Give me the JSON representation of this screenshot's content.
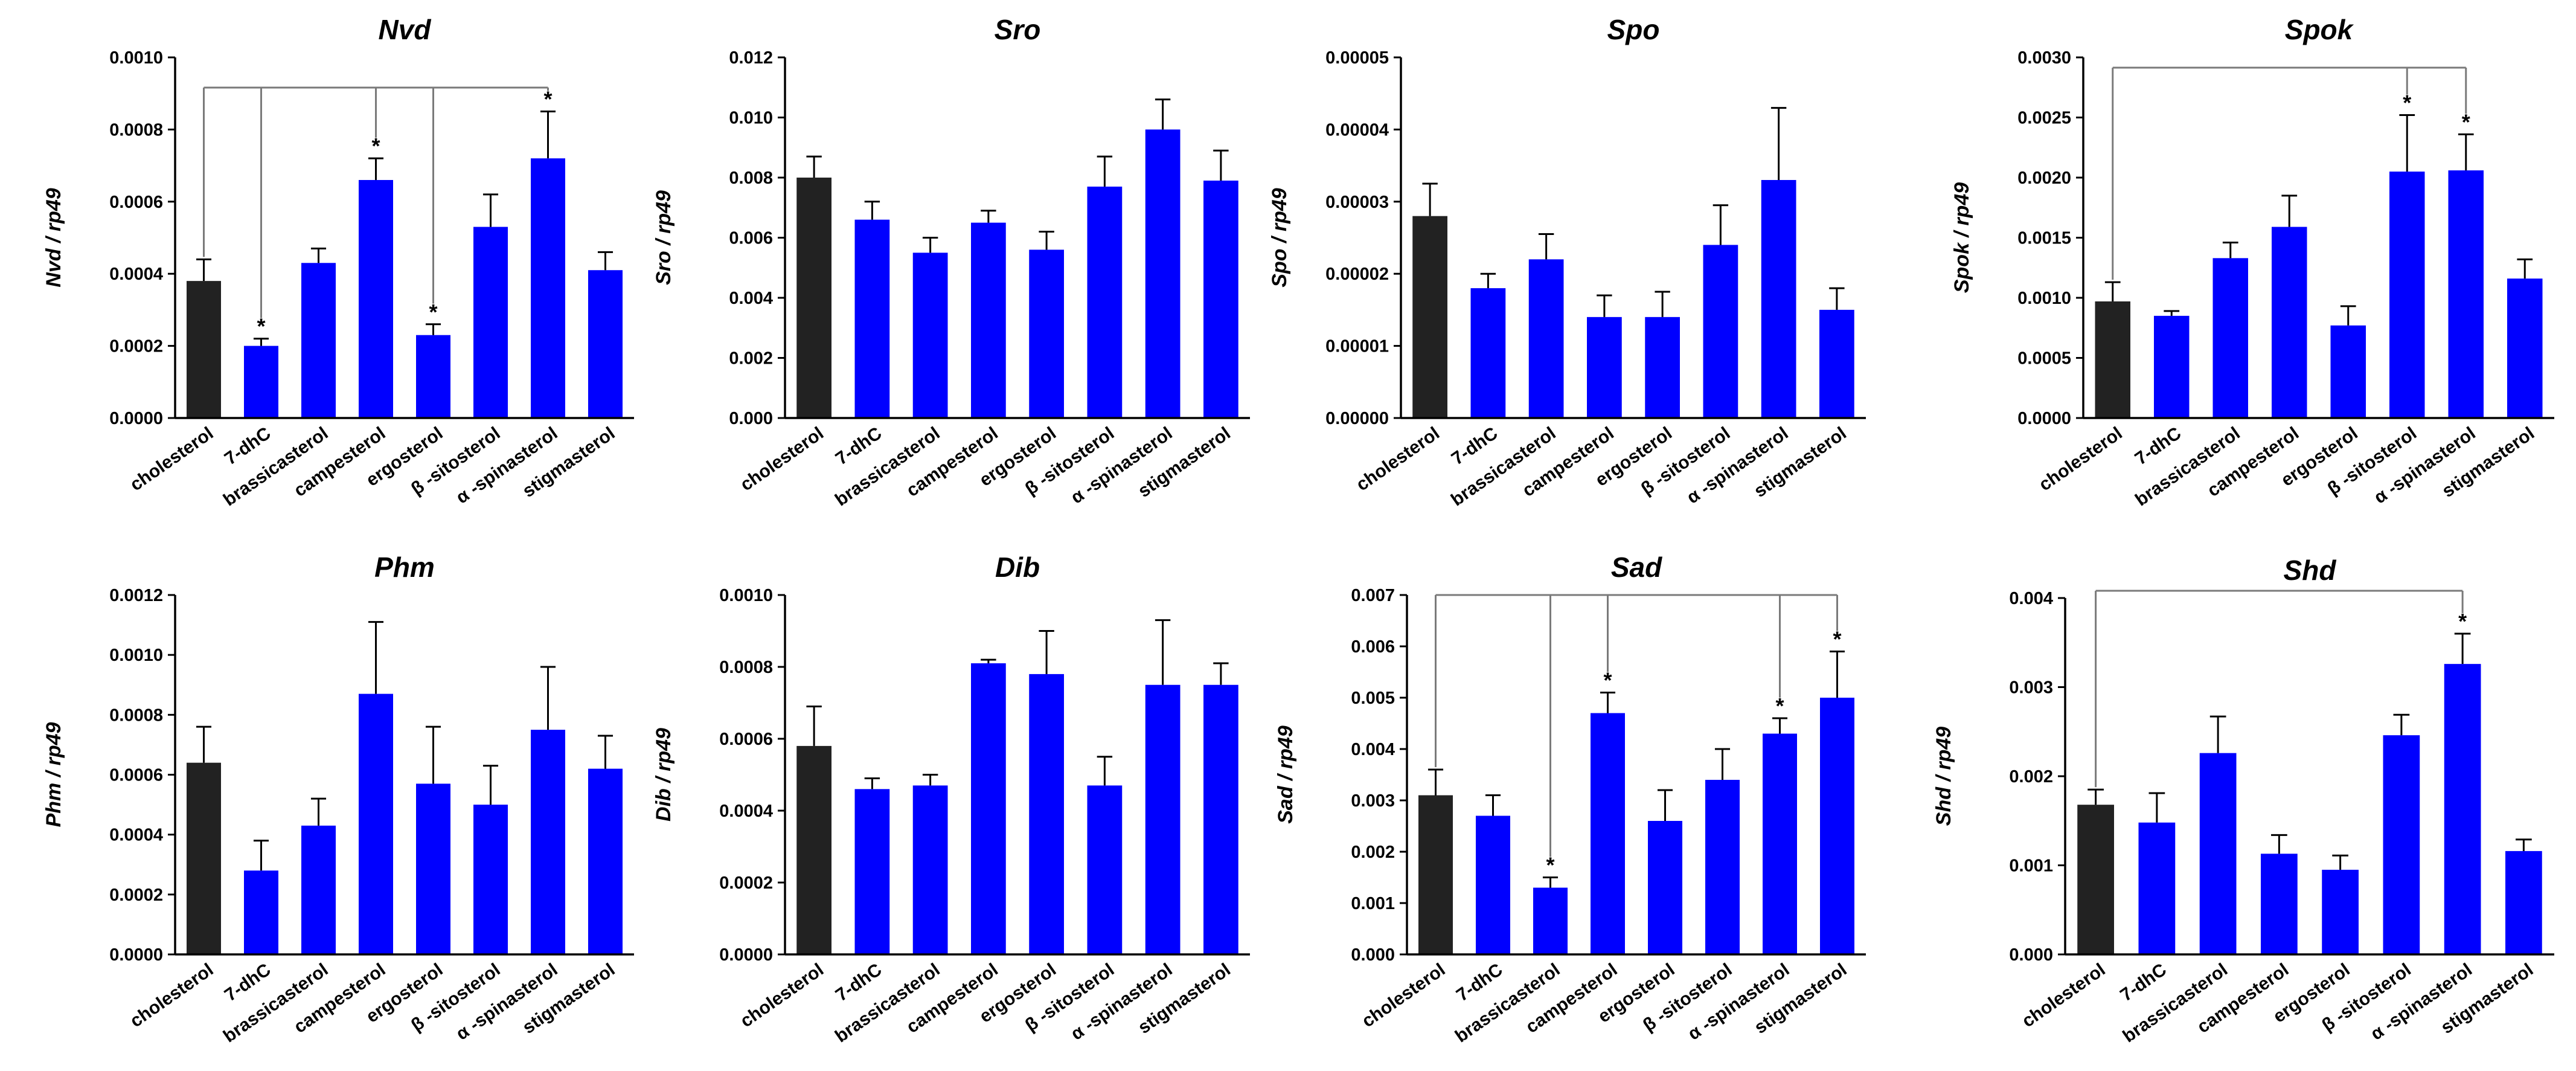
{
  "colors": {
    "control": "#222222",
    "treatment": "#0000ff",
    "axis": "#000000",
    "bracket": "#7a7a7a"
  },
  "chart_data": [
    {
      "type": "bar",
      "title": "Nvd",
      "ylabel": "Nvd / rp49",
      "categories": [
        "cholesterol",
        "7-dhC",
        "brassicasterol",
        "campesterol",
        "ergosterol",
        "β -sitosterol",
        "α -spinasterol",
        "stigmasterol"
      ],
      "values": [
        0.00038,
        0.0002,
        0.00043,
        0.00066,
        0.00023,
        0.00053,
        0.00072,
        0.00041
      ],
      "errors": [
        6e-05,
        2e-05,
        4e-05,
        6e-05,
        3e-05,
        9e-05,
        0.00013,
        5e-05
      ],
      "ylim": [
        0,
        0.001
      ],
      "yticks": [
        "0.0000",
        "0.0002",
        "0.0004",
        "0.0006",
        "0.0008",
        "0.0010"
      ],
      "significant": [
        1,
        3,
        4,
        6
      ],
      "stars": [
        "*",
        "*",
        "*",
        "*"
      ]
    },
    {
      "type": "bar",
      "title": "Sro",
      "ylabel": "Sro / rp49",
      "categories": [
        "cholesterol",
        "7-dhC",
        "brassicasterol",
        "campesterol",
        "ergosterol",
        "β -sitosterol",
        "α -spinasterol",
        "stigmasterol"
      ],
      "values": [
        0.008,
        0.0066,
        0.0055,
        0.0065,
        0.0056,
        0.0077,
        0.0096,
        0.0079
      ],
      "errors": [
        0.0007,
        0.0006,
        0.0005,
        0.0004,
        0.0006,
        0.001,
        0.001,
        0.001
      ],
      "ylim": [
        0,
        0.012
      ],
      "yticks": [
        "0.000",
        "0.002",
        "0.004",
        "0.006",
        "0.008",
        "0.010",
        "0.012"
      ],
      "significant": [],
      "stars": []
    },
    {
      "type": "bar",
      "title": "Spo",
      "ylabel": "Spo / rp49",
      "categories": [
        "cholesterol",
        "7-dhC",
        "brassicasterol",
        "campesterol",
        "ergosterol",
        "β -sitosterol",
        "α -spinasterol",
        "stigmasterol"
      ],
      "values": [
        2.8e-05,
        1.8e-05,
        2.2e-05,
        1.4e-05,
        1.4e-05,
        2.4e-05,
        3.3e-05,
        1.5e-05
      ],
      "errors": [
        4.5e-06,
        2e-06,
        3.5e-06,
        3e-06,
        3.5e-06,
        5.5e-06,
        1e-05,
        3e-06
      ],
      "ylim": [
        0,
        5e-05
      ],
      "yticks": [
        "0.00000",
        "0.00001",
        "0.00002",
        "0.00003",
        "0.00004",
        "0.00005"
      ],
      "significant": [],
      "stars": []
    },
    {
      "type": "bar",
      "title": "Spok",
      "ylabel": "Spok / rp49",
      "categories": [
        "cholesterol",
        "7-dhC",
        "brassicasterol",
        "campesterol",
        "ergosterol",
        "β -sitosterol",
        "α -spinasterol",
        "stigmasterol"
      ],
      "values": [
        0.00097,
        0.00085,
        0.00133,
        0.00159,
        0.00077,
        0.00205,
        0.00206,
        0.00116
      ],
      "errors": [
        0.00016,
        4e-05,
        0.00013,
        0.00026,
        0.00016,
        0.00047,
        0.0003,
        0.00016
      ],
      "ylim": [
        0,
        0.003
      ],
      "yticks": [
        "0.0000",
        "0.0005",
        "0.0010",
        "0.0015",
        "0.0020",
        "0.0025",
        "0.0030"
      ],
      "significant": [
        5,
        6
      ],
      "stars": [
        "*",
        "*"
      ]
    },
    {
      "type": "bar",
      "title": "Phm",
      "ylabel": "Phm / rp49",
      "categories": [
        "cholesterol",
        "7-dhC",
        "brassicasterol",
        "campesterol",
        "ergosterol",
        "β -sitosterol",
        "α -spinasterol",
        "stigmasterol"
      ],
      "values": [
        0.00064,
        0.00028,
        0.00043,
        0.00087,
        0.00057,
        0.0005,
        0.00075,
        0.00062
      ],
      "errors": [
        0.00012,
        0.0001,
        9e-05,
        0.00024,
        0.00019,
        0.00013,
        0.00021,
        0.00011
      ],
      "ylim": [
        0,
        0.0012
      ],
      "yticks": [
        "0.0000",
        "0.0002",
        "0.0004",
        "0.0006",
        "0.0008",
        "0.0010",
        "0.0012"
      ],
      "significant": [],
      "stars": []
    },
    {
      "type": "bar",
      "title": "Dib",
      "ylabel": "Dib / rp49",
      "categories": [
        "cholesterol",
        "7-dhC",
        "brassicasterol",
        "campesterol",
        "ergosterol",
        "β -sitosterol",
        "α -spinasterol",
        "stigmasterol"
      ],
      "values": [
        0.00058,
        0.00046,
        0.00047,
        0.00081,
        0.00078,
        0.00047,
        0.00075,
        0.00075
      ],
      "errors": [
        0.00011,
        3e-05,
        3e-05,
        1e-05,
        0.00012,
        8e-05,
        0.00018,
        6e-05
      ],
      "ylim": [
        0,
        0.001
      ],
      "yticks": [
        "0.0000",
        "0.0002",
        "0.0004",
        "0.0006",
        "0.0008",
        "0.0010"
      ],
      "significant": [],
      "stars": []
    },
    {
      "type": "bar",
      "title": "Sad",
      "ylabel": "Sad / rp49",
      "categories": [
        "cholesterol",
        "7-dhC",
        "brassicasterol",
        "campesterol",
        "ergosterol",
        "β -sitosterol",
        "α -spinasterol",
        "stigmasterol"
      ],
      "values": [
        0.0031,
        0.0027,
        0.0013,
        0.0047,
        0.0026,
        0.0034,
        0.0043,
        0.005
      ],
      "errors": [
        0.0005,
        0.0004,
        0.0002,
        0.0004,
        0.0006,
        0.0006,
        0.0003,
        0.0009
      ],
      "ylim": [
        0,
        0.007
      ],
      "yticks": [
        "0.000",
        "0.001",
        "0.002",
        "0.003",
        "0.004",
        "0.005",
        "0.006",
        "0.007"
      ],
      "significant": [
        2,
        3,
        6,
        7
      ],
      "stars": [
        "*",
        "*",
        "*",
        "*"
      ]
    },
    {
      "type": "bar",
      "title": "Shd",
      "ylabel": "Shd / rp49",
      "categories": [
        "cholesterol",
        "7-dhC",
        "brassicasterol",
        "campesterol",
        "ergosterol",
        "β -sitosterol",
        "α -spinasterol",
        "stigmasterol"
      ],
      "values": [
        0.00168,
        0.00148,
        0.00226,
        0.00113,
        0.00095,
        0.00246,
        0.00326,
        0.00116
      ],
      "errors": [
        0.00017,
        0.00033,
        0.00041,
        0.00021,
        0.00016,
        0.00023,
        0.00034,
        0.00013
      ],
      "ylim": [
        0,
        0.004
      ],
      "yticks": [
        "0.000",
        "0.001",
        "0.002",
        "0.003",
        "0.004"
      ],
      "significant": [
        6
      ],
      "stars": [
        "*"
      ]
    }
  ]
}
